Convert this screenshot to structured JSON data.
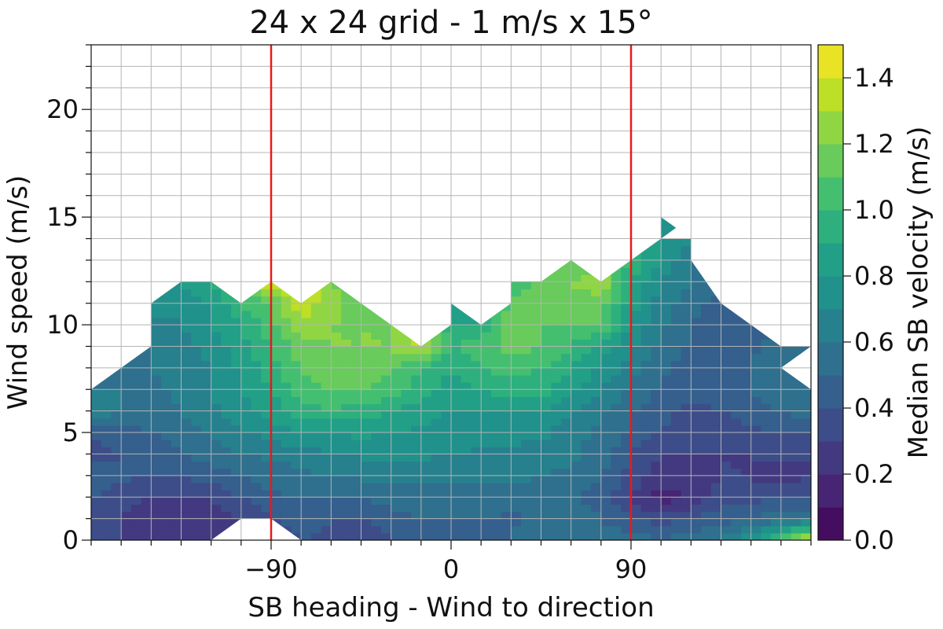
{
  "chart_data": {
    "type": "heatmap",
    "title": "24 x 24 grid - 1 m/s x 15°",
    "xlabel": "SB heading - Wind to direction",
    "ylabel": "Wind speed (m/s)",
    "colorbar_label": "Median SB velocity (m/s)",
    "colormap": "viridis",
    "xlim": [
      -180,
      180
    ],
    "ylim": [
      0,
      23
    ],
    "clim": [
      0,
      1.5
    ],
    "x_ticks": [
      -90,
      0,
      90
    ],
    "x_tick_labels": [
      "−90",
      "0",
      "90"
    ],
    "y_ticks": [
      0,
      5,
      10,
      15,
      20
    ],
    "y_tick_labels": [
      "0",
      "5",
      "10",
      "15",
      "20"
    ],
    "colorbar_ticks": [
      0,
      0.2,
      0.4,
      0.6,
      0.8,
      1.0,
      1.2,
      1.4
    ],
    "colorbar_tick_labels": [
      "0.0",
      "0.2",
      "0.4",
      "0.6",
      "0.8",
      "1.0",
      "1.2",
      "1.4"
    ],
    "grid": true,
    "vertical_lines": [
      {
        "x": -90,
        "color": "#e8191c"
      },
      {
        "x": 90,
        "color": "#e8191c"
      }
    ],
    "x": [
      -180,
      -165,
      -150,
      -135,
      -120,
      -105,
      -90,
      -75,
      -60,
      -45,
      -30,
      -15,
      0,
      15,
      30,
      45,
      60,
      75,
      90,
      105,
      120,
      135,
      150,
      165,
      180
    ],
    "y": [
      0,
      1,
      2,
      3,
      4,
      5,
      6,
      7,
      8,
      9,
      10,
      11,
      12,
      13,
      14,
      15
    ],
    "upper_boundary": [
      [
        -180,
        7
      ],
      [
        -165,
        8
      ],
      [
        -150,
        9
      ],
      [
        -150,
        11
      ],
      [
        -135,
        12
      ],
      [
        -120,
        12
      ],
      [
        -105,
        11
      ],
      [
        -90,
        12
      ],
      [
        -75,
        11
      ],
      [
        -60,
        12
      ],
      [
        -45,
        11
      ],
      [
        -30,
        10
      ],
      [
        -15,
        9
      ],
      [
        0,
        10
      ],
      [
        0,
        11
      ],
      [
        15,
        10
      ],
      [
        30,
        11
      ],
      [
        30,
        12
      ],
      [
        45,
        12
      ],
      [
        60,
        13
      ],
      [
        75,
        12
      ],
      [
        90,
        13
      ],
      [
        105,
        14
      ],
      [
        105,
        15
      ],
      [
        120,
        14
      ],
      [
        120,
        13
      ],
      [
        135,
        11
      ],
      [
        150,
        10
      ],
      [
        165,
        9
      ],
      [
        180,
        9
      ],
      [
        165,
        8
      ],
      [
        180,
        7
      ],
      [
        180,
        0
      ]
    ],
    "values": [
      [
        0.3,
        0.3,
        0.25,
        0.22,
        0.25,
        0.3,
        0.35,
        0.4,
        0.38,
        0.35,
        0.4,
        0.5,
        0.45,
        0.5,
        0.5,
        0.6,
        0.6,
        0.55,
        0.55,
        0.5,
        0.55,
        0.6,
        0.8,
        1.1,
        1.4
      ],
      [
        0.32,
        0.3,
        0.22,
        0.2,
        0.25,
        0.3,
        0.4,
        0.42,
        0.4,
        0.38,
        0.45,
        0.5,
        0.5,
        0.5,
        0.48,
        0.5,
        0.55,
        0.5,
        0.4,
        0.35,
        0.4,
        0.45,
        0.5,
        0.55,
        0.6
      ],
      [
        0.4,
        0.35,
        0.3,
        0.3,
        0.3,
        0.4,
        0.48,
        0.5,
        0.5,
        0.5,
        0.55,
        0.55,
        0.55,
        0.55,
        0.55,
        0.55,
        0.5,
        0.45,
        0.3,
        0.15,
        0.2,
        0.35,
        0.35,
        0.4,
        0.4
      ],
      [
        0.45,
        0.42,
        0.4,
        0.4,
        0.45,
        0.5,
        0.55,
        0.58,
        0.6,
        0.62,
        0.62,
        0.62,
        0.62,
        0.62,
        0.62,
        0.6,
        0.58,
        0.5,
        0.35,
        0.25,
        0.25,
        0.3,
        0.3,
        0.22,
        0.3
      ],
      [
        0.35,
        0.4,
        0.45,
        0.48,
        0.55,
        0.6,
        0.62,
        0.65,
        0.7,
        0.72,
        0.72,
        0.72,
        0.7,
        0.68,
        0.68,
        0.68,
        0.62,
        0.55,
        0.4,
        0.3,
        0.3,
        0.3,
        0.3,
        0.35,
        0.3
      ],
      [
        0.4,
        0.45,
        0.5,
        0.55,
        0.6,
        0.68,
        0.75,
        0.8,
        0.8,
        0.82,
        0.8,
        0.78,
        0.75,
        0.75,
        0.72,
        0.72,
        0.65,
        0.58,
        0.48,
        0.4,
        0.35,
        0.35,
        0.38,
        0.4,
        0.4
      ],
      [
        0.7,
        0.6,
        0.55,
        0.6,
        0.68,
        0.75,
        0.85,
        0.95,
        1.0,
        0.95,
        0.9,
        0.85,
        0.8,
        0.8,
        0.8,
        0.8,
        0.72,
        0.62,
        0.52,
        0.42,
        0.38,
        0.4,
        0.45,
        0.5,
        0.55
      ],
      [
        0.6,
        0.6,
        0.58,
        0.62,
        0.7,
        0.8,
        0.9,
        1.05,
        1.1,
        1.1,
        1.05,
        0.95,
        0.85,
        0.9,
        0.95,
        0.95,
        0.82,
        0.7,
        0.58,
        0.48,
        0.42,
        0.45,
        0.5,
        0.55,
        0.55
      ],
      [
        0.5,
        0.55,
        0.6,
        0.65,
        0.7,
        0.82,
        0.95,
        1.1,
        1.15,
        1.15,
        1.1,
        1.0,
        0.9,
        1.0,
        1.05,
        1.0,
        0.9,
        0.78,
        0.65,
        0.52,
        0.45,
        0.45,
        0.5,
        0.55,
        0.6
      ],
      [
        0.5,
        0.55,
        0.6,
        0.65,
        0.75,
        0.85,
        1.0,
        1.15,
        1.2,
        1.2,
        1.2,
        1.35,
        1.0,
        1.05,
        1.15,
        1.1,
        1.0,
        0.85,
        0.72,
        0.58,
        0.48,
        0.45,
        0.48,
        0.55,
        0.6
      ],
      [
        0.5,
        0.55,
        0.6,
        0.7,
        0.8,
        0.9,
        1.05,
        1.3,
        1.2,
        1.2,
        1.2,
        1.3,
        0.9,
        0.9,
        1.2,
        1.1,
        1.1,
        1.1,
        0.8,
        0.62,
        0.5,
        0.45,
        0.45,
        0.5,
        0.5
      ],
      [
        0.5,
        0.55,
        0.8,
        0.75,
        0.8,
        1.0,
        1.1,
        1.35,
        1.25,
        1.1,
        1.1,
        1.2,
        0.8,
        0.85,
        1.1,
        1.2,
        1.15,
        1.15,
        0.85,
        0.65,
        0.55,
        0.45,
        0.45,
        0.45,
        0.45
      ],
      [
        0.5,
        0.55,
        0.8,
        0.8,
        0.9,
        1.1,
        1.45,
        1.4,
        1.2,
        1.1,
        1.1,
        1.1,
        0.8,
        0.85,
        1.0,
        1.1,
        1.2,
        1.3,
        0.9,
        0.7,
        0.6,
        0.55,
        0.5,
        0.45,
        0.45
      ],
      [
        0.5,
        0.55,
        1.1,
        0.9,
        0.9,
        1.0,
        1.1,
        1.1,
        1.05,
        1.0,
        1.0,
        1.0,
        0.8,
        0.8,
        0.9,
        1.0,
        1.1,
        1.1,
        1.0,
        0.8,
        0.6,
        0.55,
        0.5,
        0.45,
        0.45
      ],
      [
        0.5,
        0.55,
        1.2,
        1.0,
        0.9,
        0.9,
        0.9,
        0.9,
        0.9,
        0.9,
        0.9,
        0.9,
        0.8,
        0.8,
        0.8,
        0.85,
        0.9,
        0.9,
        0.9,
        0.8,
        0.7,
        0.6,
        0.55,
        0.5,
        0.45
      ],
      [
        0.5,
        0.55,
        1.2,
        1.0,
        0.9,
        0.9,
        0.9,
        0.9,
        0.9,
        0.9,
        0.9,
        0.9,
        0.8,
        0.8,
        0.8,
        0.85,
        0.9,
        0.9,
        0.9,
        0.75,
        0.75,
        0.6,
        0.55,
        0.5,
        0.45
      ]
    ],
    "blank_regions": [
      [
        [
          -120,
          0
        ],
        [
          -105,
          1
        ],
        [
          -90,
          1
        ],
        [
          -75,
          0
        ]
      ],
      [
        [
          105,
          14
        ],
        [
          120,
          15
        ],
        [
          120,
          14
        ]
      ]
    ]
  }
}
